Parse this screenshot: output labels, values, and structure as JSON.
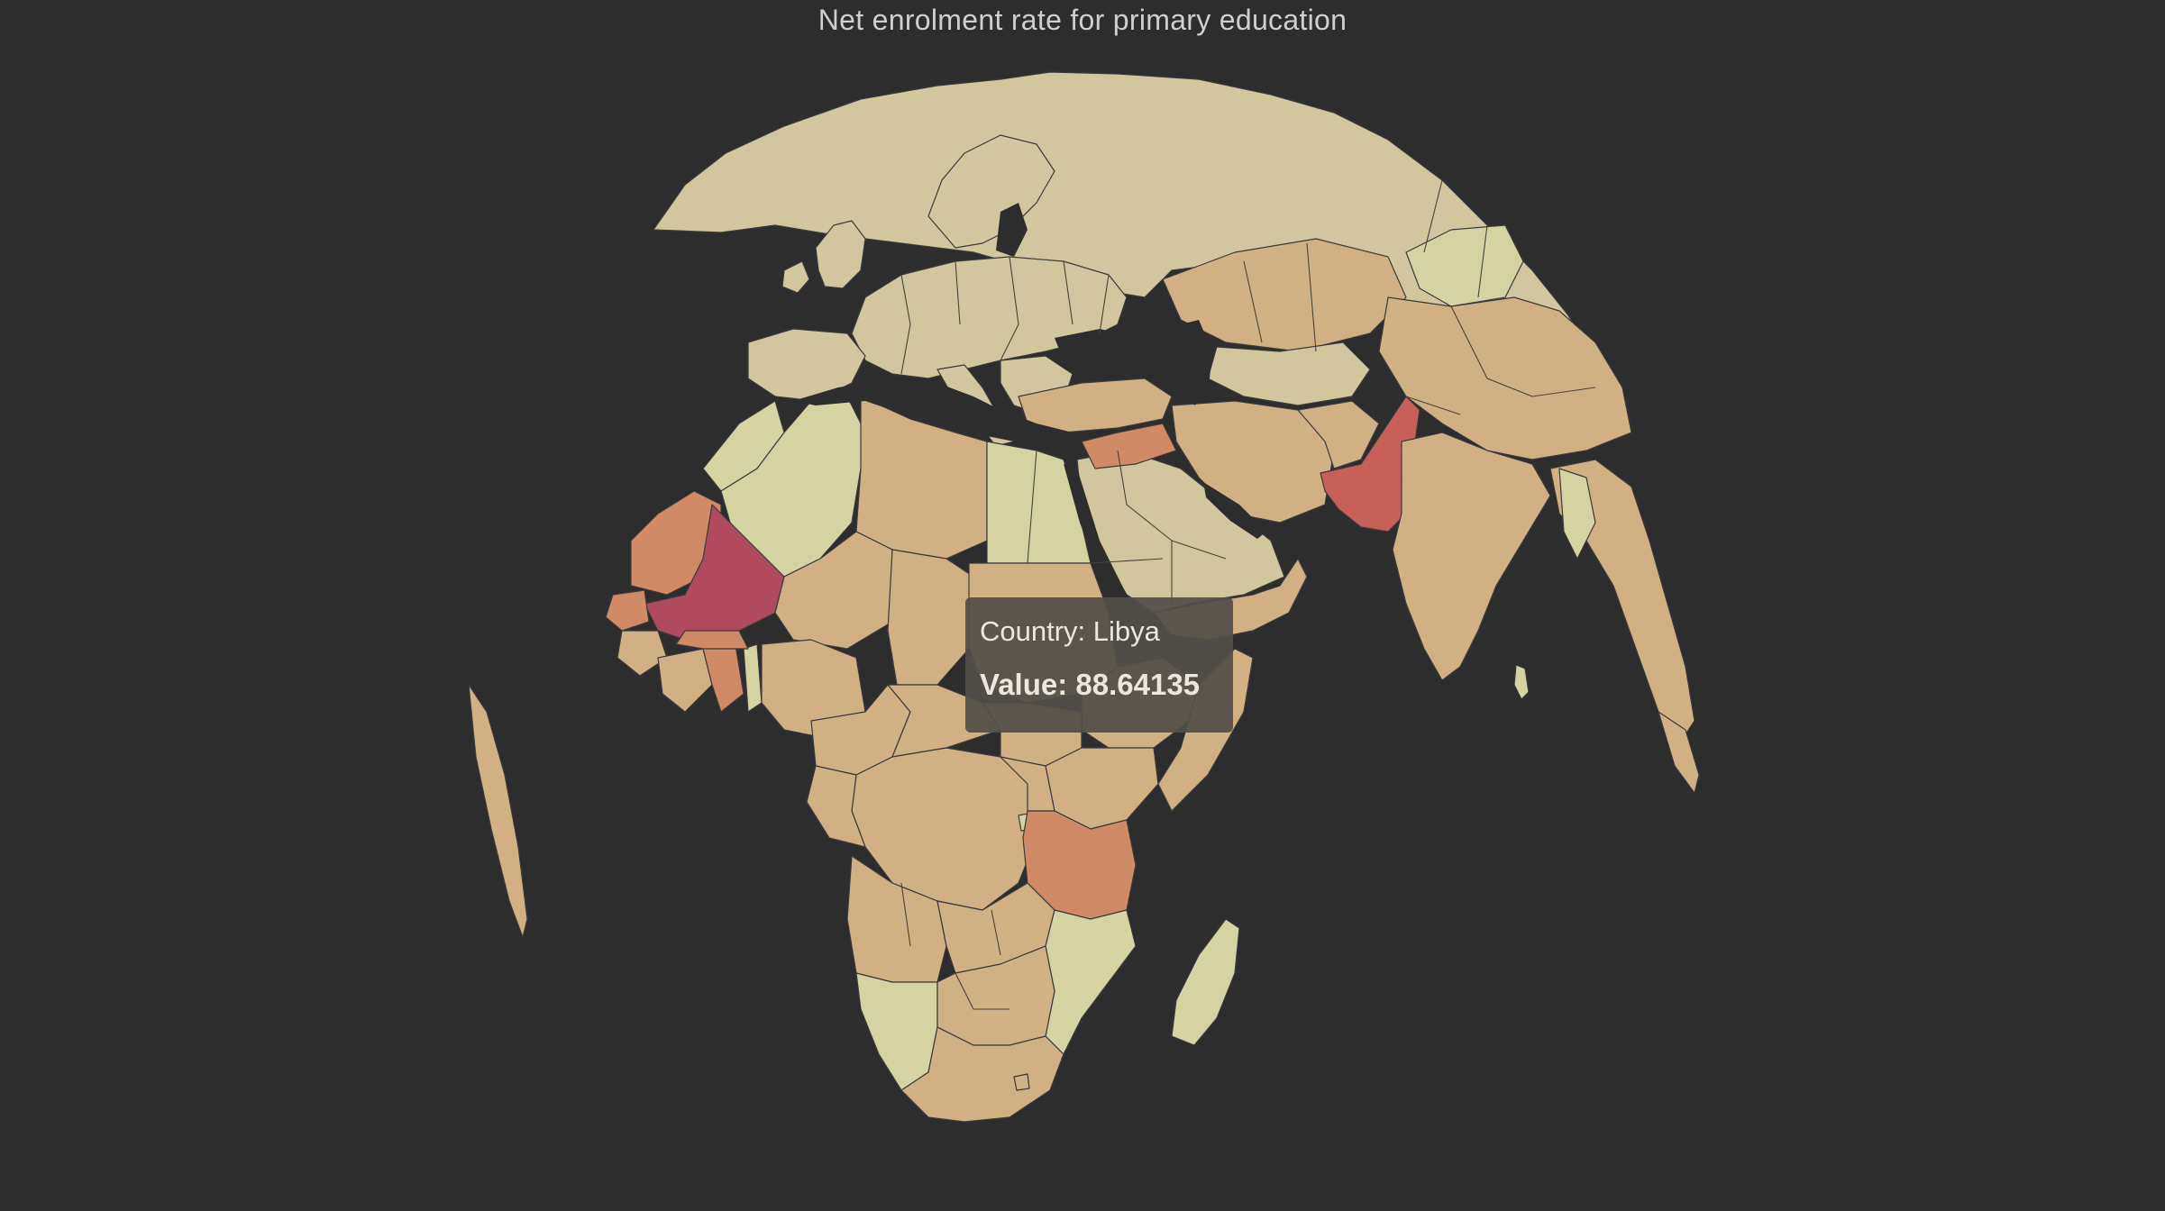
{
  "title": "Net enrolment rate for primary education",
  "tooltip": {
    "country_line": "Country: Libya",
    "value_line": "Value: 88.64135"
  },
  "hovered_region": {
    "country": "Libya",
    "value": 88.64135
  },
  "colors": {
    "background": "#2d2d2d",
    "land_high": "#d2c69e",
    "land_upper": "#d6d3a3",
    "land_mid": "#d1b083",
    "land_lower": "#d08b66",
    "land_low": "#c8605a",
    "land_lowest": "#b04a5e",
    "tooltip_bg": "#524e48",
    "tooltip_text": "#ebe7df",
    "border": "#4a4336"
  }
}
